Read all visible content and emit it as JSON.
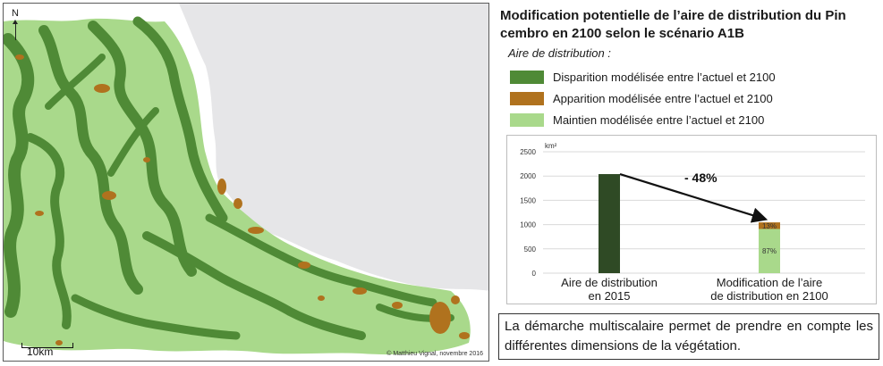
{
  "title": "Modification potentielle de l’aire de distribution du Pin cembro en 2100 selon le scénario A1B",
  "legend": {
    "heading": "Aire de distribution :",
    "items": [
      {
        "label": "Disparition modélisée entre l’actuel et 2100",
        "color": "#4f8a36"
      },
      {
        "label": "Apparition modélisée entre l’actuel et 2100",
        "color": "#b0721e"
      },
      {
        "label": "Maintien modélisée entre l’actuel et 2100",
        "color": "#a9d98b"
      }
    ]
  },
  "map": {
    "north_label": "N",
    "scale_label": "10km",
    "credit": "© Matthieu Vignal, novembre 2016",
    "colors": {
      "sea": "#e6e6e8",
      "land": "#ffffff",
      "loss": "#4f8a36",
      "gain": "#b0721e",
      "kept": "#a9d98b"
    }
  },
  "chart_data": {
    "type": "bar",
    "unit": "km²",
    "ylim": [
      0,
      2500
    ],
    "yticks": [
      "0",
      "500",
      "1000",
      "1500",
      "2000",
      "2500"
    ],
    "categories": [
      "Aire de distribution en 2015",
      "Modification de l’aire de distribution en 2100"
    ],
    "category_lines": [
      [
        "Aire de distribution",
        "en 2015"
      ],
      [
        "Modification de l’aire",
        "de distribution en 2100"
      ]
    ],
    "bars": [
      {
        "segments": [
          {
            "value": 2040,
            "color": "#2f4a25"
          }
        ]
      },
      {
        "segments": [
          {
            "value": 910,
            "color": "#a9d98b",
            "label": "87%"
          },
          {
            "value": 136,
            "color": "#b0721e",
            "label": "13%"
          }
        ]
      }
    ],
    "annotation": "- 48%"
  },
  "caption": "La démarche multiscalaire permet de prendre en compte les différentes dimensions de la végétation."
}
